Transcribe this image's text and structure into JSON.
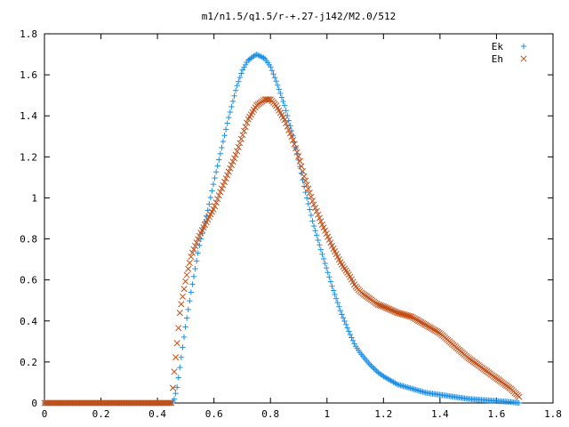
{
  "chart_data": {
    "type": "scatter",
    "title": "m1/n1.5/q1.5/r-+.27-j142/M2.0/512",
    "xlabel": "",
    "ylabel": "",
    "xlim": [
      0,
      1.8
    ],
    "ylim": [
      0,
      1.8
    ],
    "x_ticks": [
      "0",
      "0.2",
      "0.4",
      "0.6",
      "0.8",
      "1",
      "1.2",
      "1.4",
      "1.6",
      "1.8"
    ],
    "y_ticks": [
      "0",
      "0.2",
      "0.4",
      "0.6",
      "0.8",
      "1",
      "1.2",
      "1.4",
      "1.6",
      "1.8"
    ],
    "grid": false,
    "legend_position": "top-right",
    "series": [
      {
        "name": "Ek",
        "marker": "plus",
        "color": "#1a8fe6",
        "x": [
          0,
          0.1,
          0.2,
          0.3,
          0.4,
          0.45,
          0.46,
          0.47,
          0.48,
          0.5,
          0.52,
          0.55,
          0.58,
          0.6,
          0.62,
          0.65,
          0.68,
          0.7,
          0.72,
          0.75,
          0.78,
          0.8,
          0.82,
          0.85,
          0.88,
          0.9,
          0.92,
          0.95,
          0.98,
          1.0,
          1.02,
          1.05,
          1.08,
          1.1,
          1.12,
          1.15,
          1.18,
          1.2,
          1.25,
          1.3,
          1.35,
          1.4,
          1.45,
          1.5,
          1.55,
          1.6,
          1.65,
          1.68
        ],
        "y": [
          0,
          0,
          0,
          0,
          0,
          0,
          0.02,
          0.08,
          0.18,
          0.38,
          0.55,
          0.78,
          0.95,
          1.08,
          1.2,
          1.38,
          1.54,
          1.62,
          1.67,
          1.7,
          1.68,
          1.64,
          1.57,
          1.45,
          1.3,
          1.18,
          1.05,
          0.88,
          0.74,
          0.65,
          0.56,
          0.44,
          0.34,
          0.28,
          0.24,
          0.19,
          0.15,
          0.13,
          0.09,
          0.07,
          0.05,
          0.04,
          0.03,
          0.02,
          0.015,
          0.01,
          0.005,
          0
        ]
      },
      {
        "name": "Eh",
        "marker": "cross",
        "color": "#c0501a",
        "x": [
          0,
          0.1,
          0.2,
          0.3,
          0.4,
          0.45,
          0.46,
          0.47,
          0.48,
          0.5,
          0.52,
          0.55,
          0.58,
          0.6,
          0.62,
          0.65,
          0.68,
          0.7,
          0.72,
          0.75,
          0.78,
          0.8,
          0.82,
          0.85,
          0.88,
          0.9,
          0.92,
          0.95,
          0.98,
          1.0,
          1.02,
          1.05,
          1.08,
          1.1,
          1.12,
          1.15,
          1.18,
          1.2,
          1.25,
          1.3,
          1.35,
          1.4,
          1.45,
          1.5,
          1.55,
          1.6,
          1.65,
          1.68
        ],
        "y": [
          0,
          0,
          0,
          0,
          0,
          0,
          0.16,
          0.3,
          0.45,
          0.6,
          0.72,
          0.82,
          0.9,
          0.95,
          1.02,
          1.12,
          1.22,
          1.3,
          1.38,
          1.45,
          1.48,
          1.48,
          1.45,
          1.38,
          1.28,
          1.2,
          1.1,
          0.98,
          0.88,
          0.82,
          0.76,
          0.68,
          0.62,
          0.57,
          0.54,
          0.51,
          0.48,
          0.47,
          0.44,
          0.42,
          0.38,
          0.34,
          0.28,
          0.22,
          0.17,
          0.12,
          0.07,
          0.03
        ]
      }
    ]
  }
}
